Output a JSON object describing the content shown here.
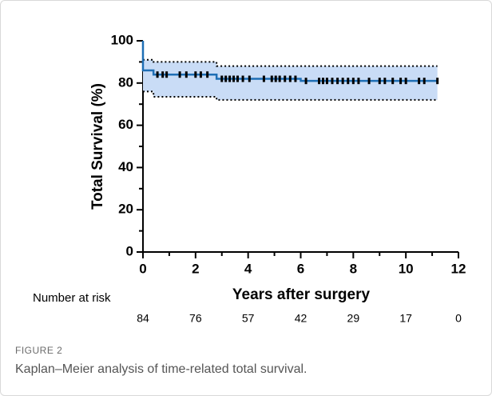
{
  "chart_data": {
    "type": "step",
    "x_label": "Years after surgery",
    "y_label": "Total Survival (%)",
    "xlim": [
      0,
      12
    ],
    "ylim": [
      0,
      100
    ],
    "xticks": [
      0,
      2,
      4,
      6,
      8,
      10,
      12
    ],
    "yticks": [
      0,
      20,
      40,
      60,
      80,
      100
    ],
    "xminorticks": [
      1,
      3,
      5,
      7,
      9,
      11
    ],
    "yminorticks": [
      10,
      30,
      50,
      70,
      90
    ],
    "survival": {
      "color": "#1f6fb5",
      "x": [
        0,
        0,
        0.4,
        0.4,
        2.8,
        2.8,
        6,
        6,
        11.2
      ],
      "y": [
        100,
        86,
        86,
        84,
        84,
        82,
        82,
        81,
        81
      ]
    },
    "ci_upper": {
      "x": [
        0,
        0.4,
        0.4,
        2.8,
        2.8,
        11.2
      ],
      "y": [
        91,
        91,
        90,
        90,
        88,
        88
      ]
    },
    "ci_lower": {
      "x": [
        0,
        0.4,
        0.4,
        2.8,
        2.8,
        11.2
      ],
      "y": [
        76,
        76,
        73.5,
        73.5,
        72,
        72
      ]
    },
    "band_color": "#c9dcf6",
    "censored": {
      "x": [
        0.55,
        0.75,
        0.9,
        1.4,
        1.65,
        2.0,
        2.2,
        2.45,
        3.0,
        3.15,
        3.3,
        3.45,
        3.6,
        3.8,
        4.05,
        4.6,
        4.9,
        5.05,
        5.2,
        5.4,
        5.6,
        5.8,
        6.2,
        6.7,
        6.85,
        7.0,
        7.2,
        7.4,
        7.6,
        7.8,
        8.0,
        8.2,
        8.6,
        9.0,
        9.2,
        9.5,
        9.8,
        10.0,
        10.5,
        10.7,
        11.2
      ],
      "y": [
        84,
        84,
        84,
        84,
        84,
        84,
        84,
        84,
        82,
        82,
        82,
        82,
        82,
        82,
        82,
        82,
        82,
        82,
        82,
        82,
        82,
        82,
        81,
        81,
        81,
        81,
        81,
        81,
        81,
        81,
        81,
        81,
        81,
        81,
        81,
        81,
        81,
        81,
        81,
        81,
        81
      ]
    },
    "risk_label": "Number at risk",
    "at_risk_x": [
      0,
      2,
      4,
      6,
      8,
      10,
      12
    ],
    "at_risk": [
      84,
      76,
      57,
      42,
      29,
      17,
      0
    ]
  },
  "caption": {
    "label": "FIGURE 2",
    "text": "Kaplan–Meier analysis of time-related total survival."
  }
}
